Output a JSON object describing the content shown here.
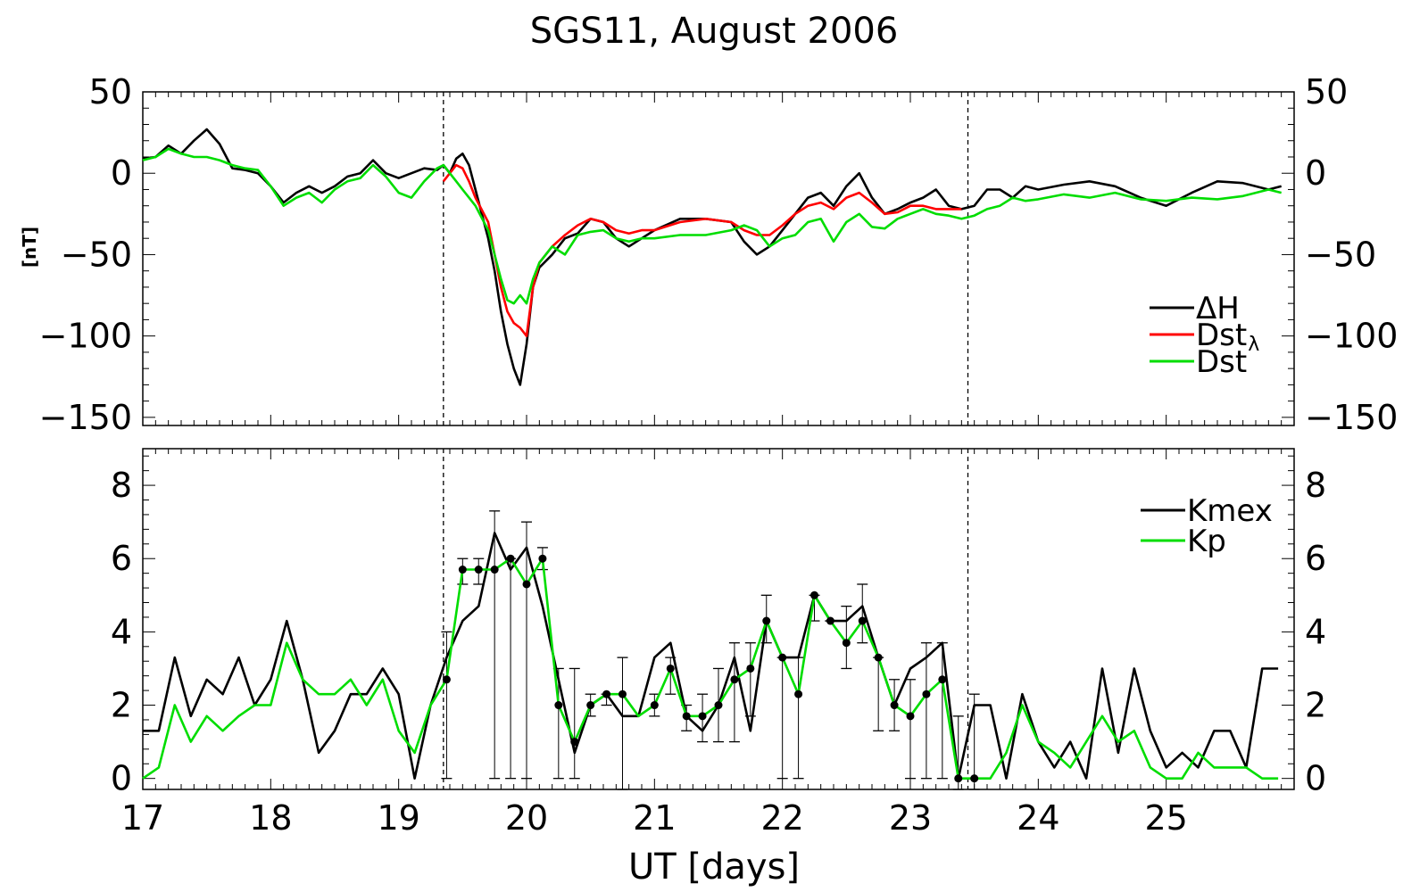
{
  "title": "SGS11, August 2006",
  "colors": {
    "dH": "#000000",
    "dst_lambda": "#ff0000",
    "dst": "#00dd00",
    "kmex": "#000000",
    "kp": "#00dd00"
  },
  "chart_data": [
    {
      "type": "line",
      "panel": "top",
      "ylabel": "[nT]",
      "xlim": [
        17,
        26
      ],
      "ylim": [
        -155,
        50
      ],
      "yticks": [
        50,
        0,
        -50,
        -100,
        -150
      ],
      "ytick_labels": [
        "50",
        "0",
        "−50",
        "−100",
        "−150"
      ],
      "vlines": [
        19.35,
        23.45
      ],
      "legend": {
        "position": "right",
        "entries": [
          {
            "key": "dH",
            "main": "ΔH",
            "sub": ""
          },
          {
            "key": "dst_lambda",
            "main": "Dst",
            "sub": "λ"
          },
          {
            "key": "dst",
            "main": "Dst",
            "sub": ""
          }
        ]
      },
      "series": [
        {
          "key": "dH",
          "color": "#000000",
          "x": [
            17.0,
            17.1,
            17.2,
            17.3,
            17.4,
            17.5,
            17.6,
            17.7,
            17.8,
            17.9,
            18.0,
            18.1,
            18.2,
            18.3,
            18.4,
            18.5,
            18.6,
            18.7,
            18.8,
            18.9,
            19.0,
            19.1,
            19.2,
            19.3,
            19.35,
            19.4,
            19.45,
            19.5,
            19.55,
            19.6,
            19.7,
            19.75,
            19.8,
            19.85,
            19.9,
            19.95,
            20.0,
            20.05,
            20.1,
            20.2,
            20.3,
            20.4,
            20.5,
            20.6,
            20.7,
            20.8,
            20.9,
            21.0,
            21.2,
            21.4,
            21.6,
            21.7,
            21.8,
            21.9,
            22.0,
            22.1,
            22.2,
            22.3,
            22.4,
            22.5,
            22.6,
            22.7,
            22.8,
            22.9,
            23.0,
            23.1,
            23.2,
            23.3,
            23.4,
            23.5,
            23.6,
            23.7,
            23.8,
            23.9,
            24.0,
            24.2,
            24.4,
            24.6,
            24.8,
            25.0,
            25.2,
            25.4,
            25.6,
            25.8,
            25.9
          ],
          "y": [
            9,
            10,
            17,
            12,
            20,
            27,
            18,
            3,
            2,
            0,
            -8,
            -18,
            -12,
            -8,
            -12,
            -8,
            -2,
            0,
            8,
            0,
            -3,
            0,
            3,
            2,
            5,
            0,
            9,
            12,
            5,
            -10,
            -40,
            -60,
            -85,
            -105,
            -120,
            -130,
            -105,
            -70,
            -58,
            -50,
            -40,
            -37,
            -28,
            -30,
            -40,
            -45,
            -40,
            -35,
            -28,
            -28,
            -30,
            -42,
            -50,
            -45,
            -35,
            -25,
            -15,
            -12,
            -20,
            -8,
            0,
            -15,
            -25,
            -22,
            -18,
            -15,
            -10,
            -20,
            -22,
            -20,
            -10,
            -10,
            -15,
            -8,
            -10,
            -7,
            -5,
            -8,
            -15,
            -20,
            -12,
            -5,
            -6,
            -10,
            -8
          ]
        },
        {
          "key": "dst_lambda",
          "color": "#ff0000",
          "x": [
            19.35,
            19.4,
            19.45,
            19.5,
            19.55,
            19.6,
            19.7,
            19.75,
            19.8,
            19.85,
            19.9,
            19.95,
            20.0,
            20.05,
            20.1,
            20.2,
            20.3,
            20.4,
            20.5,
            20.6,
            20.7,
            20.8,
            20.9,
            21.0,
            21.2,
            21.4,
            21.6,
            21.7,
            21.8,
            21.9,
            22.0,
            22.1,
            22.2,
            22.3,
            22.4,
            22.5,
            22.6,
            22.7,
            22.8,
            22.9,
            23.0,
            23.1,
            23.2,
            23.3,
            23.4
          ],
          "y": [
            -5,
            0,
            5,
            3,
            -5,
            -15,
            -30,
            -50,
            -70,
            -85,
            -92,
            -95,
            -100,
            -70,
            -55,
            -45,
            -38,
            -32,
            -28,
            -30,
            -35,
            -37,
            -35,
            -35,
            -30,
            -28,
            -30,
            -35,
            -38,
            -38,
            -32,
            -25,
            -20,
            -18,
            -22,
            -15,
            -12,
            -18,
            -25,
            -24,
            -20,
            -20,
            -22,
            -22,
            -22
          ]
        },
        {
          "key": "dst",
          "color": "#00dd00",
          "x": [
            17.0,
            17.1,
            17.2,
            17.3,
            17.4,
            17.5,
            17.6,
            17.7,
            17.8,
            17.9,
            18.0,
            18.1,
            18.2,
            18.3,
            18.4,
            18.5,
            18.6,
            18.7,
            18.8,
            18.9,
            19.0,
            19.1,
            19.2,
            19.3,
            19.35,
            19.4,
            19.45,
            19.5,
            19.55,
            19.6,
            19.7,
            19.75,
            19.8,
            19.85,
            19.9,
            19.95,
            20.0,
            20.05,
            20.1,
            20.2,
            20.3,
            20.4,
            20.5,
            20.6,
            20.7,
            20.8,
            20.9,
            21.0,
            21.2,
            21.4,
            21.6,
            21.7,
            21.8,
            21.9,
            22.0,
            22.1,
            22.2,
            22.3,
            22.4,
            22.5,
            22.6,
            22.7,
            22.8,
            22.9,
            23.0,
            23.1,
            23.2,
            23.3,
            23.4,
            23.5,
            23.6,
            23.7,
            23.8,
            23.9,
            24.0,
            24.2,
            24.4,
            24.6,
            24.8,
            25.0,
            25.2,
            25.4,
            25.6,
            25.8,
            25.9
          ],
          "y": [
            8,
            10,
            15,
            12,
            10,
            10,
            8,
            5,
            3,
            2,
            -8,
            -20,
            -15,
            -12,
            -18,
            -10,
            -5,
            -3,
            5,
            -2,
            -12,
            -15,
            -5,
            3,
            5,
            0,
            -5,
            -10,
            -15,
            -20,
            -35,
            -50,
            -65,
            -78,
            -80,
            -75,
            -80,
            -65,
            -55,
            -45,
            -50,
            -38,
            -36,
            -35,
            -40,
            -42,
            -40,
            -40,
            -38,
            -38,
            -35,
            -32,
            -35,
            -45,
            -40,
            -38,
            -30,
            -28,
            -42,
            -30,
            -25,
            -33,
            -34,
            -28,
            -25,
            -22,
            -25,
            -26,
            -28,
            -26,
            -22,
            -20,
            -15,
            -17,
            -16,
            -13,
            -15,
            -12,
            -16,
            -17,
            -15,
            -16,
            -14,
            -10,
            -12
          ]
        }
      ]
    },
    {
      "type": "line",
      "panel": "bottom",
      "xlabel": "UT [days]",
      "xlim": [
        17,
        26
      ],
      "ylim": [
        -0.3,
        9
      ],
      "yticks": [
        0,
        2,
        4,
        6,
        8
      ],
      "ytick_labels": [
        "0",
        "2",
        "4",
        "6",
        "8"
      ],
      "xticks": [
        17,
        18,
        19,
        20,
        21,
        22,
        23,
        24,
        25
      ],
      "xtick_labels": [
        "17",
        "18",
        "19",
        "20",
        "21",
        "22",
        "23",
        "24",
        "25"
      ],
      "vlines": [
        19.35,
        23.45
      ],
      "legend": {
        "position": "top-right",
        "entries": [
          {
            "key": "kmex",
            "main": "Kmex",
            "sub": ""
          },
          {
            "key": "kp",
            "main": "Kp",
            "sub": ""
          }
        ]
      },
      "series": [
        {
          "key": "kmex",
          "color": "#000000",
          "x": [
            17.0,
            17.125,
            17.25,
            17.375,
            17.5,
            17.625,
            17.75,
            17.875,
            18.0,
            18.125,
            18.25,
            18.375,
            18.5,
            18.625,
            18.75,
            18.875,
            19.0,
            19.125,
            19.25,
            19.375,
            19.5,
            19.625,
            19.75,
            19.875,
            20.0,
            20.125,
            20.25,
            20.375,
            20.5,
            20.625,
            20.75,
            20.875,
            21.0,
            21.125,
            21.25,
            21.375,
            21.5,
            21.625,
            21.75,
            21.875,
            22.0,
            22.125,
            22.25,
            22.375,
            22.5,
            22.625,
            22.75,
            22.875,
            23.0,
            23.125,
            23.25,
            23.375,
            23.5,
            23.625,
            23.75,
            23.875,
            24.0,
            24.125,
            24.25,
            24.375,
            24.5,
            24.625,
            24.75,
            24.875,
            25.0,
            25.125,
            25.25,
            25.375,
            25.5,
            25.625,
            25.75,
            25.875
          ],
          "y": [
            1.3,
            1.3,
            3.3,
            1.7,
            2.7,
            2.3,
            3.3,
            2.0,
            2.7,
            4.3,
            2.7,
            0.7,
            1.3,
            2.3,
            2.3,
            3.0,
            2.3,
            0.0,
            2.0,
            3.3,
            4.3,
            4.7,
            6.7,
            5.7,
            6.3,
            4.7,
            2.7,
            0.7,
            2.0,
            2.3,
            1.7,
            1.7,
            3.3,
            3.7,
            1.7,
            1.3,
            2.0,
            3.3,
            1.3,
            4.3,
            3.3,
            3.3,
            5.0,
            4.3,
            4.3,
            4.7,
            3.3,
            2.0,
            3.0,
            3.3,
            3.7,
            0.0,
            2.0,
            2.0,
            0.0,
            2.3,
            1.0,
            0.3,
            1.0,
            0.0,
            3.0,
            0.7,
            3.0,
            1.3,
            0.3,
            0.7,
            0.3,
            1.3,
            1.3,
            0.3,
            3.0,
            3.0
          ]
        },
        {
          "key": "kp",
          "color": "#00dd00",
          "x": [
            17.0,
            17.125,
            17.25,
            17.375,
            17.5,
            17.625,
            17.75,
            17.875,
            18.0,
            18.125,
            18.25,
            18.375,
            18.5,
            18.625,
            18.75,
            18.875,
            19.0,
            19.125,
            19.25,
            19.375,
            19.5,
            19.625,
            19.75,
            19.875,
            20.0,
            20.125,
            20.25,
            20.375,
            20.5,
            20.625,
            20.75,
            20.875,
            21.0,
            21.125,
            21.25,
            21.375,
            21.5,
            21.625,
            21.75,
            21.875,
            22.0,
            22.125,
            22.25,
            22.375,
            22.5,
            22.625,
            22.75,
            22.875,
            23.0,
            23.125,
            23.25,
            23.375,
            23.5,
            23.625,
            23.75,
            23.875,
            24.0,
            24.125,
            24.25,
            24.375,
            24.5,
            24.625,
            24.75,
            24.875,
            25.0,
            25.125,
            25.25,
            25.375,
            25.5,
            25.625,
            25.75,
            25.875
          ],
          "y": [
            0.0,
            0.3,
            2.0,
            1.0,
            1.7,
            1.3,
            1.7,
            2.0,
            2.0,
            3.7,
            2.7,
            2.3,
            2.3,
            2.7,
            2.0,
            2.7,
            1.3,
            0.7,
            2.0,
            2.7,
            5.7,
            5.7,
            5.7,
            6.0,
            5.3,
            6.0,
            2.0,
            1.0,
            2.0,
            2.3,
            2.3,
            1.7,
            2.0,
            3.0,
            1.7,
            1.7,
            2.0,
            2.7,
            3.0,
            4.3,
            3.3,
            2.3,
            5.0,
            4.3,
            3.7,
            4.3,
            3.3,
            2.0,
            1.7,
            2.3,
            2.7,
            0.0,
            0.0,
            0.0,
            0.7,
            2.0,
            1.0,
            0.7,
            0.3,
            1.0,
            1.7,
            1.0,
            1.3,
            0.3,
            0.0,
            0.0,
            0.7,
            0.3,
            0.3,
            0.3,
            0.0,
            0.0
          ]
        },
        {
          "key": "kp_points",
          "color": "#000000",
          "marker": "dot",
          "x": [
            19.375,
            19.5,
            19.625,
            19.75,
            19.875,
            20.0,
            20.125,
            20.25,
            20.375,
            20.5,
            20.625,
            20.75,
            21.0,
            21.125,
            21.25,
            21.375,
            21.5,
            21.625,
            21.75,
            21.875,
            22.0,
            22.125,
            22.25,
            22.375,
            22.5,
            22.625,
            22.75,
            22.875,
            23.0,
            23.125,
            23.25,
            23.375,
            23.5
          ],
          "y": [
            2.7,
            5.7,
            5.7,
            5.7,
            6.0,
            5.3,
            6.0,
            2.0,
            1.0,
            2.0,
            2.3,
            2.3,
            2.0,
            3.0,
            1.7,
            1.7,
            2.0,
            2.7,
            3.0,
            4.3,
            3.3,
            2.3,
            5.0,
            4.3,
            3.7,
            4.3,
            3.3,
            2.0,
            1.7,
            2.3,
            2.7,
            0.0,
            0.0
          ],
          "err_low": [
            0.0,
            5.3,
            5.3,
            0.0,
            0.0,
            0.0,
            5.7,
            0.0,
            0.0,
            1.7,
            2.0,
            -0.3,
            1.7,
            2.3,
            1.3,
            1.0,
            1.0,
            1.0,
            1.7,
            3.7,
            0.0,
            0.0,
            4.3,
            4.3,
            3.0,
            3.7,
            1.3,
            1.3,
            0.0,
            0.0,
            0.0,
            -0.3,
            -0.3
          ],
          "err_high": [
            4.0,
            6.0,
            6.0,
            7.3,
            6.0,
            7.0,
            6.3,
            3.0,
            3.0,
            2.3,
            2.3,
            3.3,
            2.3,
            3.3,
            2.0,
            2.3,
            3.0,
            3.7,
            3.7,
            5.0,
            3.3,
            3.3,
            5.0,
            4.3,
            4.7,
            5.3,
            3.3,
            2.7,
            2.7,
            3.7,
            3.7,
            1.7,
            2.3
          ]
        }
      ]
    }
  ]
}
